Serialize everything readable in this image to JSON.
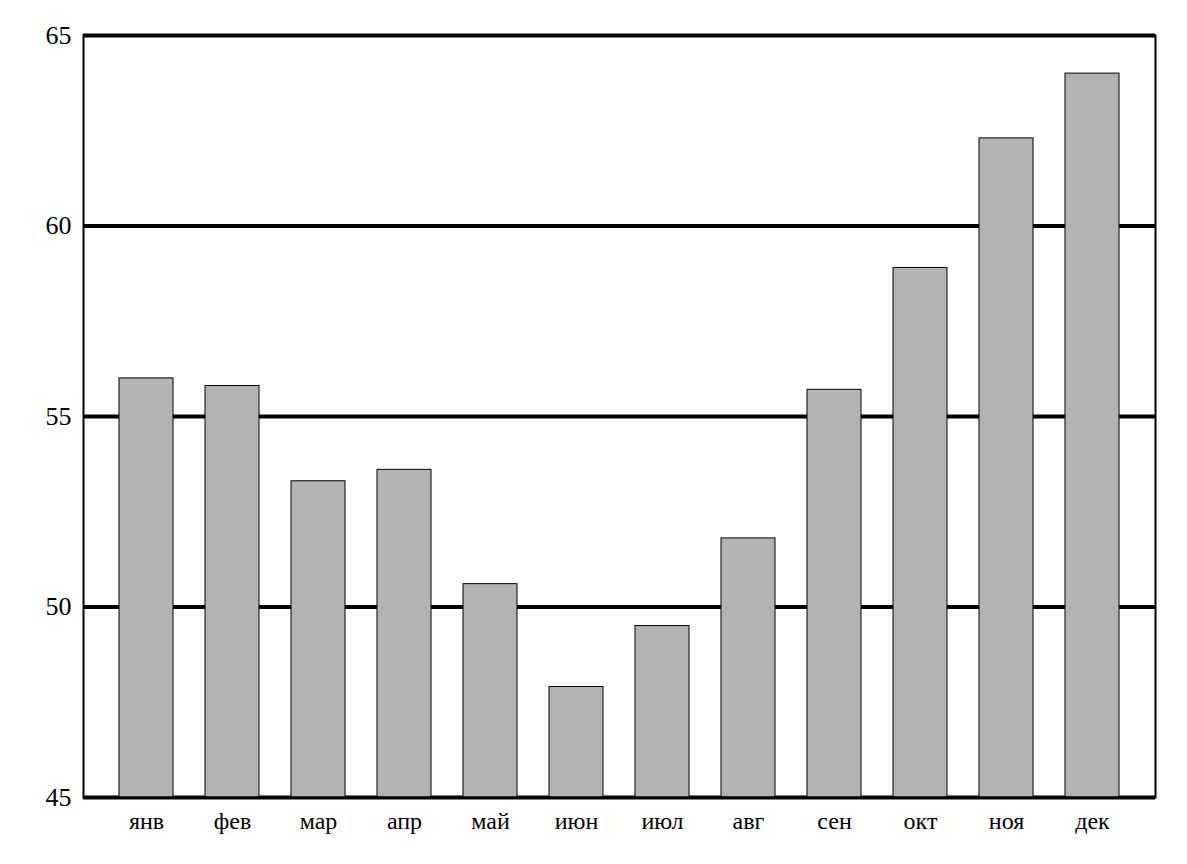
{
  "chart_data": {
    "type": "bar",
    "categories": [
      "янв",
      "фев",
      "мар",
      "апр",
      "май",
      "июн",
      "июл",
      "авг",
      "сен",
      "окт",
      "ноя",
      "дек"
    ],
    "values": [
      56.0,
      55.8,
      53.3,
      53.6,
      50.6,
      47.9,
      49.5,
      51.8,
      55.7,
      58.9,
      62.3,
      64.0
    ],
    "color": "#b3b3b3",
    "ylim": [
      45,
      65
    ],
    "yticks": [
      45,
      50,
      55,
      60,
      65
    ],
    "grid": true
  }
}
